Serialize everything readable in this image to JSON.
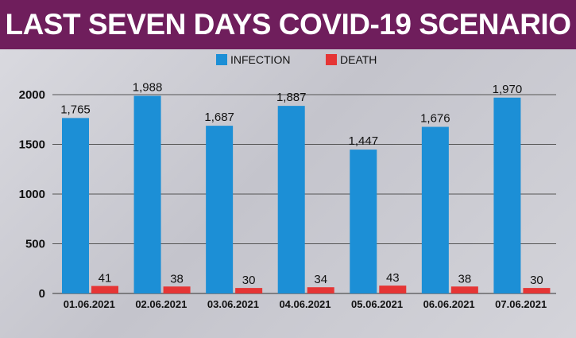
{
  "header": {
    "title": "LAST SEVEN DAYS COVID-19 SCENARIO"
  },
  "colors": {
    "header_bg": "#6f1e5c",
    "infection": "#1c8fd6",
    "death": "#e53535"
  },
  "chart_data": {
    "type": "bar",
    "title": "LAST SEVEN DAYS COVID-19 SCENARIO",
    "categories": [
      "01.06.2021",
      "02.06.2021",
      "03.06.2021",
      "04.06.2021",
      "05.06.2021",
      "06.06.2021",
      "07.06.2021"
    ],
    "series": [
      {
        "name": "INFECTION",
        "values": [
          1765,
          1988,
          1687,
          1887,
          1447,
          1676,
          1970
        ],
        "labels": [
          "1,765",
          "1,988",
          "1,687",
          "1,887",
          "1,447",
          "1,676",
          "1,970"
        ]
      },
      {
        "name": "DEATH",
        "values": [
          41,
          38,
          30,
          34,
          43,
          38,
          30
        ],
        "labels": [
          "41",
          "38",
          "30",
          "34",
          "43",
          "38",
          "30"
        ]
      }
    ],
    "yticks": [
      0,
      500,
      1000,
      1500,
      2000
    ],
    "ylim": [
      0,
      2000
    ],
    "xlabel": "",
    "ylabel": "",
    "grid": true,
    "legend": "top-center"
  }
}
